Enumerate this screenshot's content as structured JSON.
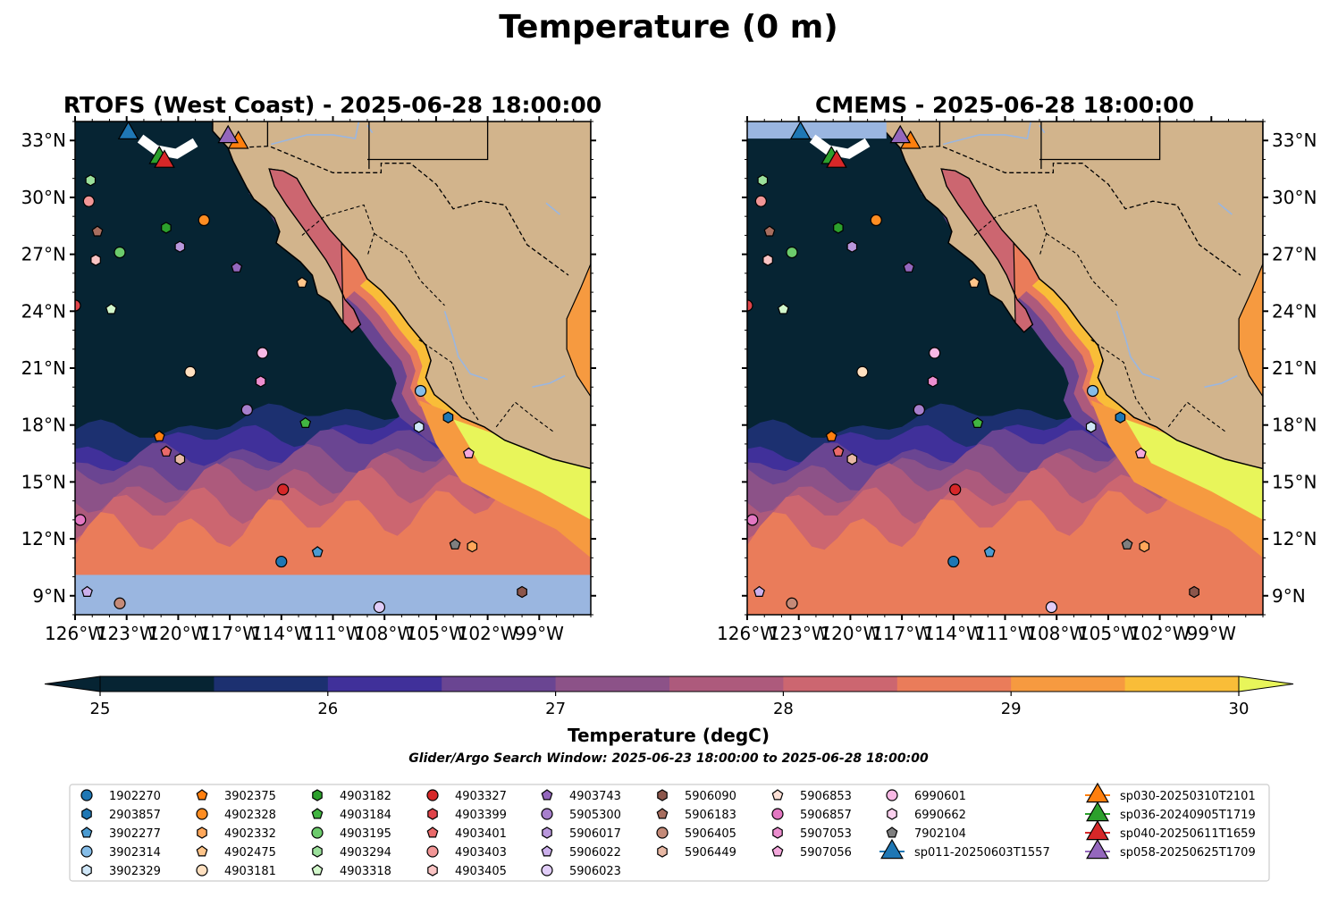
{
  "title": "Temperature (0 m)",
  "panels": [
    {
      "id": "rtofs",
      "title": "RTOFS (West Coast) - 2025-06-28 18:00:00"
    },
    {
      "id": "cmems",
      "title": "CMEMS - 2025-06-28 18:00:00"
    }
  ],
  "map": {
    "lon_range": [
      -126,
      -96
    ],
    "lat_range": [
      8,
      34
    ],
    "lon_ticks": [
      {
        "value": -126,
        "label": "126°W"
      },
      {
        "value": -123,
        "label": "123°W"
      },
      {
        "value": -120,
        "label": "120°W"
      },
      {
        "value": -117,
        "label": "117°W"
      },
      {
        "value": -114,
        "label": "114°W"
      },
      {
        "value": -111,
        "label": "111°W"
      },
      {
        "value": -108,
        "label": "108°W"
      },
      {
        "value": -105,
        "label": "105°W"
      },
      {
        "value": -102,
        "label": "102°W"
      },
      {
        "value": -99,
        "label": "99°W"
      }
    ],
    "lat_ticks": [
      {
        "value": 9,
        "label": "9°N"
      },
      {
        "value": 12,
        "label": "12°N"
      },
      {
        "value": 15,
        "label": "15°N"
      },
      {
        "value": 18,
        "label": "18°N"
      },
      {
        "value": 21,
        "label": "21°N"
      },
      {
        "value": 24,
        "label": "24°N"
      },
      {
        "value": 27,
        "label": "27°N"
      },
      {
        "value": 30,
        "label": "30°N"
      },
      {
        "value": 33,
        "label": "33°N"
      }
    ],
    "colors": {
      "land": "#d2b48c",
      "cold_ocean": "#062433",
      "nodata": "#9ab6e0",
      "river": "#9ab6e0"
    }
  },
  "colorbar": {
    "label": "Temperature (degC)",
    "min": 25,
    "max": 30,
    "step": 0.5,
    "ticks": [
      "25",
      "26",
      "27",
      "28",
      "29",
      "30"
    ],
    "colors": [
      "#062433",
      "#1c3070",
      "#40309a",
      "#6a4592",
      "#8c5288",
      "#ad5a7c",
      "#cc6670",
      "#ea7c5a",
      "#f69a40",
      "#f9bd38"
    ],
    "under_color": "#062433",
    "over_color": "#e8f55a"
  },
  "search_window": "Glider/Argo Search Window: 2025-06-23 18:00:00 to 2025-06-28 18:00:00",
  "legend_columns": [
    [
      {
        "label": "1902270",
        "marker": "circle",
        "color": "#1f77b4"
      },
      {
        "label": "2903857",
        "marker": "hexagon",
        "color": "#1f77b4"
      },
      {
        "label": "3902277",
        "marker": "pentagon",
        "color": "#4b9bd1"
      },
      {
        "label": "3902314",
        "marker": "circle",
        "color": "#85bde8"
      },
      {
        "label": "3902329",
        "marker": "hexagon",
        "color": "#cfe6f7"
      }
    ],
    [
      {
        "label": "3902375",
        "marker": "pentagon",
        "color": "#ff7f0e"
      },
      {
        "label": "4902328",
        "marker": "circle",
        "color": "#ff8d22"
      },
      {
        "label": "4902332",
        "marker": "hexagon",
        "color": "#ffa75a"
      },
      {
        "label": "4902475",
        "marker": "pentagon",
        "color": "#ffc58a"
      },
      {
        "label": "4903181",
        "marker": "circle",
        "color": "#ffe0c0"
      }
    ],
    [
      {
        "label": "4903182",
        "marker": "hexagon",
        "color": "#2ca02c"
      },
      {
        "label": "4903184",
        "marker": "pentagon",
        "color": "#41b541"
      },
      {
        "label": "4903195",
        "marker": "circle",
        "color": "#6ccb6c"
      },
      {
        "label": "4903294",
        "marker": "hexagon",
        "color": "#9be09b"
      },
      {
        "label": "4903318",
        "marker": "pentagon",
        "color": "#d2f7cb"
      }
    ],
    [
      {
        "label": "4903327",
        "marker": "circle",
        "color": "#d62728"
      },
      {
        "label": "4903399",
        "marker": "hexagon",
        "color": "#e0444a"
      },
      {
        "label": "4903401",
        "marker": "pentagon",
        "color": "#ea6a6a"
      },
      {
        "label": "4903403",
        "marker": "circle",
        "color": "#f29696"
      },
      {
        "label": "4903405",
        "marker": "hexagon",
        "color": "#fac4c4"
      }
    ],
    [
      {
        "label": "4903743",
        "marker": "pentagon",
        "color": "#9467bd"
      },
      {
        "label": "5905300",
        "marker": "circle",
        "color": "#a77fcc"
      },
      {
        "label": "5906017",
        "marker": "hexagon",
        "color": "#b997dc"
      },
      {
        "label": "5906022",
        "marker": "pentagon",
        "color": "#ccb0ec"
      },
      {
        "label": "5906023",
        "marker": "circle",
        "color": "#e1cdf8"
      }
    ],
    [
      {
        "label": "5906090",
        "marker": "hexagon",
        "color": "#8c564b"
      },
      {
        "label": "5906183",
        "marker": "pentagon",
        "color": "#a86e5f"
      },
      {
        "label": "5906405",
        "marker": "circle",
        "color": "#c48a78"
      },
      {
        "label": "5906449",
        "marker": "hexagon",
        "color": "#e8b8a4"
      }
    ],
    [
      {
        "label": "5906853",
        "marker": "pentagon",
        "color": "#fde0d6"
      },
      {
        "label": "5906857",
        "marker": "circle",
        "color": "#e377c2"
      },
      {
        "label": "5907053",
        "marker": "hexagon",
        "color": "#ec8ecf"
      },
      {
        "label": "5907056",
        "marker": "pentagon",
        "color": "#f4a8dc"
      }
    ],
    [
      {
        "label": "6990601",
        "marker": "circle",
        "color": "#f8b8e4"
      },
      {
        "label": "6990662",
        "marker": "hexagon",
        "color": "#fbd0ee"
      },
      {
        "label": "7902104",
        "marker": "pentagon",
        "color": "#7f7f7f"
      },
      {
        "label": "sp011-20250603T1557",
        "marker": "triangle",
        "color": "#1f77b4"
      }
    ],
    [
      {
        "label": "sp030-20250310T2101",
        "marker": "triangle",
        "color": "#ff7f0e"
      },
      {
        "label": "sp036-20240905T1719",
        "marker": "triangle",
        "color": "#2ca02c"
      },
      {
        "label": "sp040-20250611T1659",
        "marker": "triangle",
        "color": "#d62728"
      },
      {
        "label": "sp058-20250625T1709",
        "marker": "triangle",
        "color": "#9467bd"
      }
    ]
  ],
  "floats": [
    {
      "lon": -126.0,
      "lat": 24.3,
      "marker": "circle",
      "color": "#e0444a"
    },
    {
      "lon": -125.1,
      "lat": 30.9,
      "marker": "hexagon",
      "color": "#9be09b"
    },
    {
      "lon": -125.2,
      "lat": 29.8,
      "marker": "circle",
      "color": "#f29696"
    },
    {
      "lon": -124.7,
      "lat": 28.2,
      "marker": "pentagon",
      "color": "#a86e5f"
    },
    {
      "lon": -124.8,
      "lat": 26.7,
      "marker": "hexagon",
      "color": "#fac4c4"
    },
    {
      "lon": -123.4,
      "lat": 27.1,
      "marker": "circle",
      "color": "#6ccb6c"
    },
    {
      "lon": -123.9,
      "lat": 24.1,
      "marker": "pentagon",
      "color": "#d2f7cb"
    },
    {
      "lon": -120.7,
      "lat": 28.4,
      "marker": "hexagon",
      "color": "#2ca02c"
    },
    {
      "lon": -119.9,
      "lat": 27.4,
      "marker": "hexagon",
      "color": "#b997dc"
    },
    {
      "lon": -118.5,
      "lat": 28.8,
      "marker": "circle",
      "color": "#ff8d22"
    },
    {
      "lon": -116.6,
      "lat": 26.3,
      "marker": "pentagon",
      "color": "#9467bd"
    },
    {
      "lon": -112.8,
      "lat": 25.5,
      "marker": "pentagon",
      "color": "#ffc58a"
    },
    {
      "lon": -115.1,
      "lat": 21.8,
      "marker": "circle",
      "color": "#f8b8e4"
    },
    {
      "lon": -119.3,
      "lat": 20.8,
      "marker": "circle",
      "color": "#ffe0c0"
    },
    {
      "lon": -115.2,
      "lat": 20.3,
      "marker": "hexagon",
      "color": "#ec8ecf"
    },
    {
      "lon": -116.0,
      "lat": 18.8,
      "marker": "circle",
      "color": "#a77fcc"
    },
    {
      "lon": -112.6,
      "lat": 18.1,
      "marker": "pentagon",
      "color": "#41b541"
    },
    {
      "lon": -121.1,
      "lat": 17.4,
      "marker": "pentagon",
      "color": "#ff7f0e"
    },
    {
      "lon": -120.7,
      "lat": 16.6,
      "marker": "pentagon",
      "color": "#ea6a6a"
    },
    {
      "lon": -119.9,
      "lat": 16.2,
      "marker": "hexagon",
      "color": "#e8b8a4"
    },
    {
      "lon": -113.9,
      "lat": 14.6,
      "marker": "circle",
      "color": "#d62728"
    },
    {
      "lon": -105.9,
      "lat": 19.8,
      "marker": "circle",
      "color": "#85bde8"
    },
    {
      "lon": -104.3,
      "lat": 18.4,
      "marker": "hexagon",
      "color": "#1f77b4"
    },
    {
      "lon": -106.0,
      "lat": 17.9,
      "marker": "hexagon",
      "color": "#cfe6f7"
    },
    {
      "lon": -103.1,
      "lat": 16.5,
      "marker": "pentagon",
      "color": "#f4a8dc"
    },
    {
      "lon": -125.7,
      "lat": 13.0,
      "marker": "circle",
      "color": "#e377c2"
    },
    {
      "lon": -114.0,
      "lat": 10.8,
      "marker": "circle",
      "color": "#1f77b4"
    },
    {
      "lon": -111.9,
      "lat": 11.3,
      "marker": "pentagon",
      "color": "#4b9bd1"
    },
    {
      "lon": -103.9,
      "lat": 11.7,
      "marker": "pentagon",
      "color": "#7f7f7f"
    },
    {
      "lon": -102.9,
      "lat": 11.6,
      "marker": "hexagon",
      "color": "#ffa75a"
    },
    {
      "lon": -125.3,
      "lat": 9.2,
      "marker": "pentagon",
      "color": "#ccb0ec"
    },
    {
      "lon": -123.4,
      "lat": 8.6,
      "marker": "circle",
      "color": "#c48a78"
    },
    {
      "lon": -108.3,
      "lat": 8.4,
      "marker": "circle",
      "color": "#e1cdf8"
    },
    {
      "lon": -100.0,
      "lat": 9.2,
      "marker": "hexagon",
      "color": "#8c564b"
    }
  ],
  "gliders": [
    {
      "lon": -122.9,
      "lat": 33.5,
      "color": "#1f77b4"
    },
    {
      "lon": -116.5,
      "lat": 33.0,
      "color": "#ff7f0e"
    },
    {
      "lon": -121.1,
      "lat": 32.2,
      "color": "#2ca02c"
    },
    {
      "lon": -120.8,
      "lat": 32.0,
      "color": "#d62728"
    },
    {
      "lon": -117.1,
      "lat": 33.3,
      "color": "#9467bd"
    }
  ]
}
